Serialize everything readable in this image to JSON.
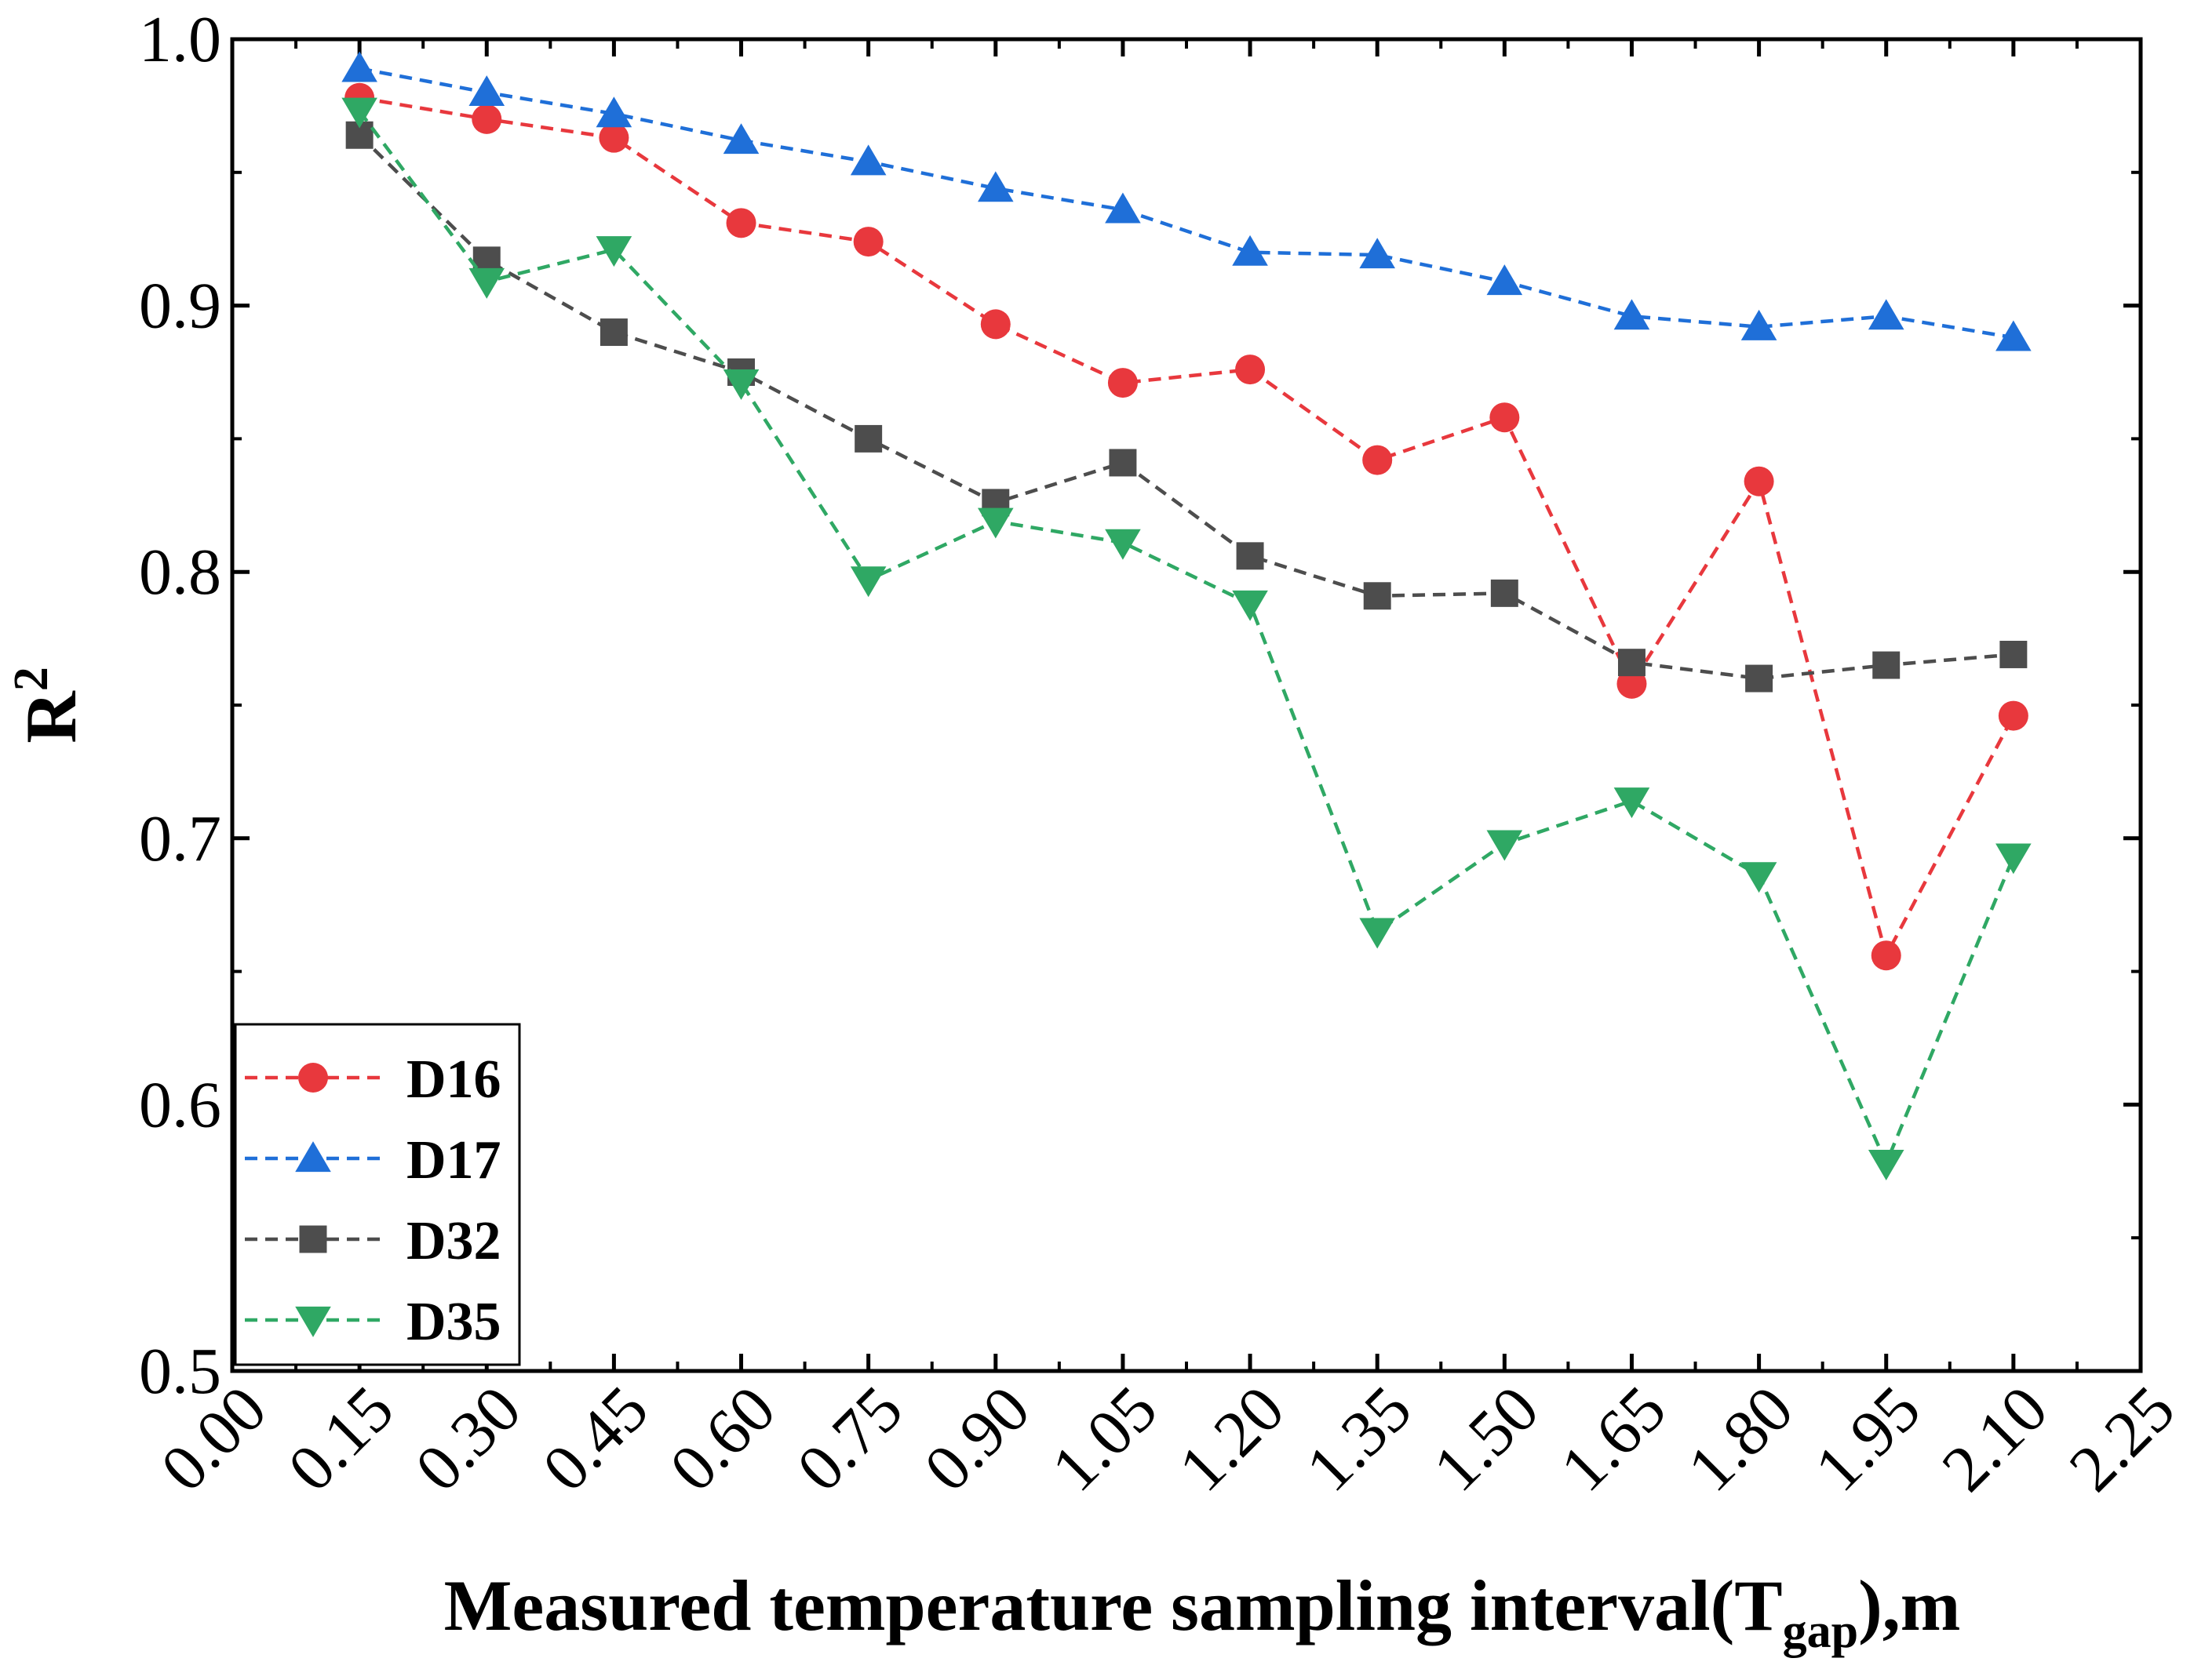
{
  "chart_data": {
    "type": "line",
    "xlabel": {
      "prefix": "Measured temperature sampling interval(T",
      "subscript": "gap",
      "suffix": "),m"
    },
    "ylabel": {
      "base": "R",
      "superscript": "2"
    },
    "xlim": [
      0,
      2.25
    ],
    "ylim": [
      0.5,
      1.0
    ],
    "x_ticks": [
      "0.00",
      "0.15",
      "0.30",
      "0.45",
      "0.60",
      "0.75",
      "0.90",
      "1.05",
      "1.20",
      "1.35",
      "1.50",
      "1.65",
      "1.80",
      "1.95",
      "2.10",
      "2.25"
    ],
    "y_ticks": [
      "0.5",
      "0.6",
      "0.7",
      "0.8",
      "0.9",
      "1.0"
    ],
    "x": [
      0.15,
      0.3,
      0.45,
      0.6,
      0.75,
      0.9,
      1.05,
      1.2,
      1.35,
      1.5,
      1.65,
      1.8,
      1.95,
      2.1
    ],
    "series": [
      {
        "name": "D16",
        "color": "#e8383d",
        "marker": "circle",
        "values": [
          0.978,
          0.97,
          0.963,
          0.931,
          0.924,
          0.893,
          0.871,
          0.876,
          0.842,
          0.858,
          0.758,
          0.834,
          0.656,
          0.746
        ]
      },
      {
        "name": "D17",
        "color": "#1f6fd8",
        "marker": "triangle-up",
        "values": [
          0.989,
          0.98,
          0.972,
          0.962,
          0.954,
          0.944,
          0.936,
          0.92,
          0.919,
          0.909,
          0.896,
          0.892,
          0.896,
          0.888
        ]
      },
      {
        "name": "D32",
        "color": "#4d4d4d",
        "marker": "square",
        "values": [
          0.964,
          0.917,
          0.89,
          0.875,
          0.85,
          0.826,
          0.841,
          0.806,
          0.791,
          0.792,
          0.766,
          0.76,
          0.765,
          0.769
        ]
      },
      {
        "name": "D35",
        "color": "#2fa864",
        "marker": "triangle-down",
        "values": [
          0.973,
          0.909,
          0.921,
          0.871,
          0.797,
          0.819,
          0.811,
          0.788,
          0.665,
          0.698,
          0.714,
          0.686,
          0.578,
          0.693
        ]
      }
    ],
    "legend_position": "bottom-left"
  }
}
